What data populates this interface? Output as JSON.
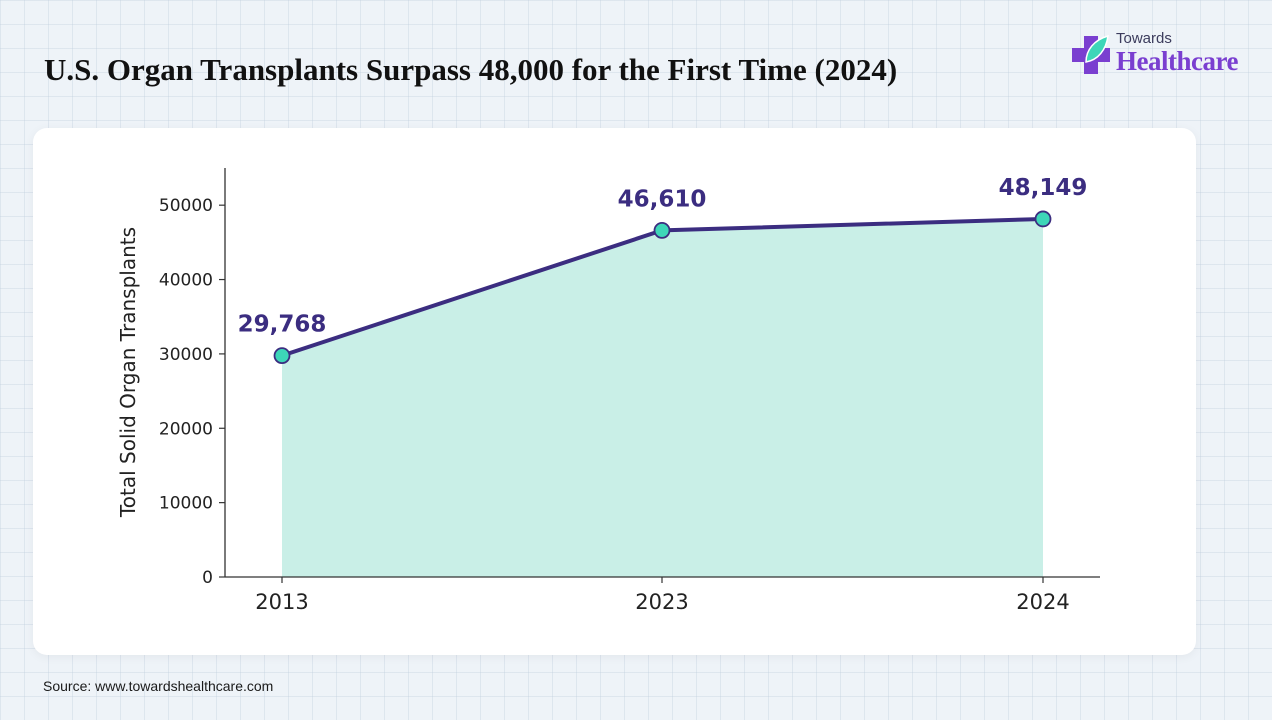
{
  "header": {
    "title": "U.S. Organ Transplants Surpass 48,000 for the First Time (2024)"
  },
  "logo": {
    "top_text": "Towards",
    "main_text": "Healthcare",
    "icon": "medical-cross-leaf-icon"
  },
  "footer": {
    "source": "Source: www.towardshealthcare.com"
  },
  "colors": {
    "line": "#3b2d80",
    "area": "#c9efe7",
    "marker_fill": "#3dd6b8",
    "label": "#3b2d80",
    "logo": "#7a3fd0"
  },
  "chart_data": {
    "type": "area",
    "categories": [
      "2013",
      "2023",
      "2024"
    ],
    "values": [
      29768,
      46610,
      48149
    ],
    "data_labels": [
      "29,768",
      "46,610",
      "48,149"
    ],
    "title": "U.S. Organ Transplants Surpass 48,000 for the First Time (2024)",
    "xlabel": "",
    "ylabel": "Total Solid Organ Transplants",
    "ylim": [
      0,
      55000
    ],
    "y_ticks": [
      0,
      10000,
      20000,
      30000,
      40000,
      50000
    ],
    "grid": false
  }
}
